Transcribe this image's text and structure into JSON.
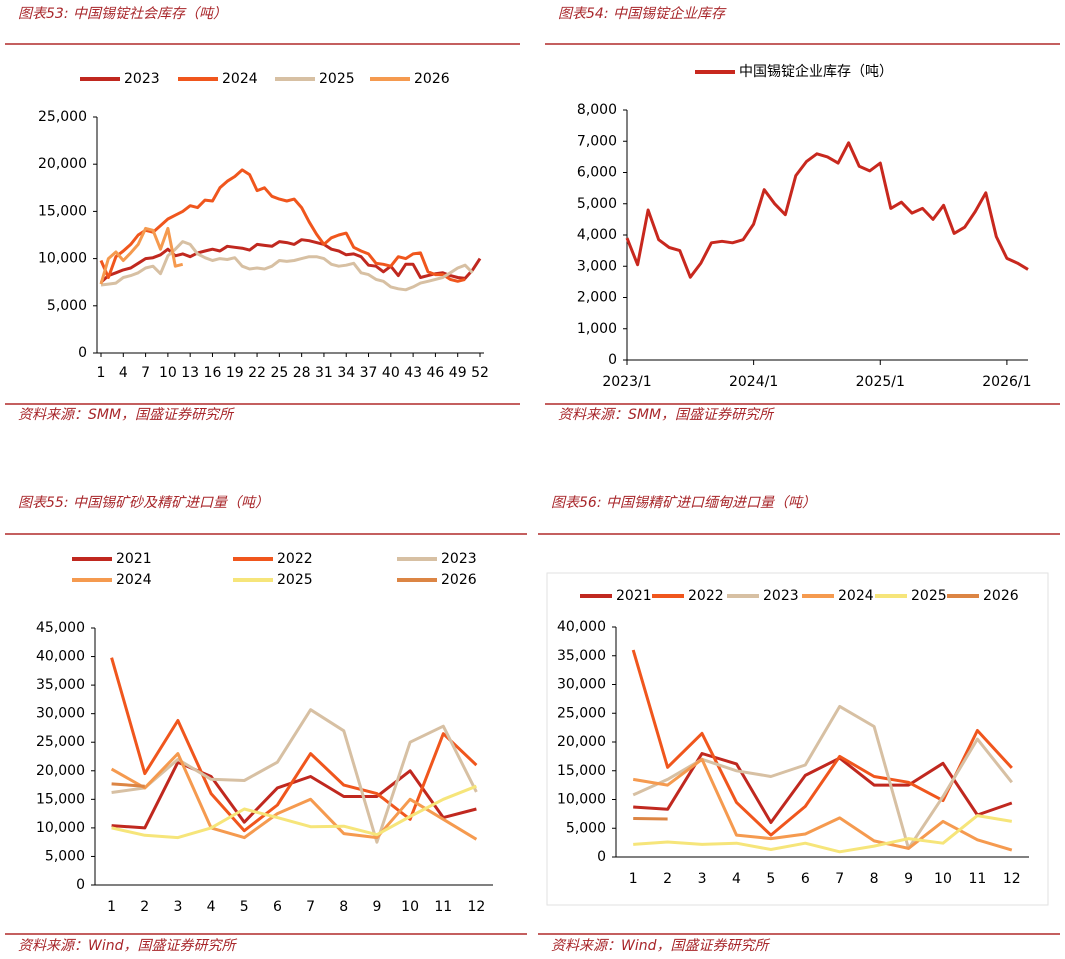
{
  "chart_data": [
    {
      "type": "line",
      "title": "图表53: 中国锡锭社会库存（吨）",
      "source": "资料来源：SMM，国盛证券研究所",
      "x": [
        1,
        2,
        3,
        4,
        5,
        6,
        7,
        8,
        9,
        10,
        11,
        12,
        13,
        14,
        15,
        16,
        17,
        18,
        19,
        20,
        21,
        22,
        23,
        24,
        25,
        26,
        27,
        28,
        29,
        30,
        31,
        32,
        33,
        34,
        35,
        36,
        37,
        38,
        39,
        40,
        41,
        42,
        43,
        44,
        45,
        46,
        47,
        48,
        49,
        50,
        51,
        52
      ],
      "xlim": [
        1,
        52
      ],
      "xticks": [
        1,
        4,
        7,
        10,
        13,
        16,
        19,
        22,
        25,
        28,
        31,
        34,
        37,
        40,
        43,
        46,
        49,
        52
      ],
      "ylim": [
        0,
        25000
      ],
      "yticks": [
        0,
        {
          "value": 5000,
          "label": "5,000"
        },
        {
          "value": 10000,
          "label": "10,000"
        },
        {
          "value": 15000,
          "label": "15,000"
        },
        {
          "value": 20000,
          "label": "20,000"
        },
        {
          "value": 25000,
          "label": "25,000"
        }
      ],
      "series": [
        {
          "name": "2023",
          "color": "#c0281f",
          "values": [
            7500,
            8200,
            8500,
            8800,
            9000,
            9500,
            10000,
            10100,
            10400,
            11000,
            10300,
            10500,
            10200,
            10600,
            10800,
            11000,
            10800,
            11300,
            11200,
            11100,
            10900,
            11500,
            11400,
            11300,
            11800,
            11700,
            11500,
            12000,
            11900,
            11700,
            11500,
            11000,
            10800,
            10400,
            10500,
            10200,
            9300,
            9200,
            8600,
            9200,
            8200,
            9400,
            9400,
            8000,
            8200,
            8400,
            8500,
            8200,
            8000,
            7900,
            8800,
            10000
          ]
        },
        {
          "name": "2024",
          "color": "#f0561d",
          "values": [
            9800,
            8000,
            10200,
            10800,
            11500,
            12500,
            13000,
            12800,
            13500,
            14200,
            14600,
            15000,
            15600,
            15400,
            16200,
            16100,
            17500,
            18200,
            18700,
            19400,
            18900,
            17200,
            17500,
            16600,
            16300,
            16100,
            16300,
            15400,
            13900,
            12600,
            11500,
            12200,
            12500,
            12700,
            11200,
            10800,
            10500,
            9500,
            9400,
            9200,
            10200,
            10000,
            10500,
            10600,
            8600,
            8300,
            8300,
            7800,
            7600,
            7800,
            null,
            null
          ]
        },
        {
          "name": "2025",
          "color": "#d7c0a3",
          "values": [
            7200,
            7300,
            7400,
            8000,
            8200,
            8500,
            9000,
            9200,
            8400,
            10300,
            11000,
            11800,
            11500,
            10500,
            10100,
            9800,
            10000,
            9900,
            10100,
            9200,
            8900,
            9000,
            8900,
            9200,
            9800,
            9700,
            9800,
            10000,
            10200,
            10200,
            10000,
            9400,
            9200,
            9300,
            9500,
            8500,
            8300,
            7800,
            7600,
            7000,
            6800,
            6700,
            7000,
            7400,
            7600,
            7800,
            8000,
            8500,
            9000,
            9300,
            8500,
            null
          ]
        },
        {
          "name": "2026",
          "color": "#f59a4f",
          "values": [
            7300,
            10000,
            10700,
            9800,
            10600,
            11500,
            13200,
            13000,
            11000,
            13200,
            9200,
            9400,
            null,
            null,
            null,
            null,
            null,
            null,
            null,
            null,
            null,
            null,
            null,
            null,
            null,
            null,
            null,
            null,
            null,
            null,
            null,
            null,
            null,
            null,
            null,
            null,
            null,
            null,
            null,
            null,
            null,
            null,
            null,
            null,
            null,
            null,
            null,
            null,
            null,
            null,
            null,
            null
          ]
        }
      ]
    },
    {
      "type": "line",
      "title": "图表54: 中国锡锭企业库存",
      "source": "资料来源：SMM，国盛证券研究所",
      "x": [
        "2023/1",
        "2023/2",
        "2023/3",
        "2023/4",
        "2023/5",
        "2023/6",
        "2023/7",
        "2023/8",
        "2023/9",
        "2023/10",
        "2023/11",
        "2023/12",
        "2024/1",
        "2024/2",
        "2024/3",
        "2024/4",
        "2024/5",
        "2024/6",
        "2024/7",
        "2024/8",
        "2024/9",
        "2024/10",
        "2024/11",
        "2024/12",
        "2025/1",
        "2025/2",
        "2025/3",
        "2025/4",
        "2025/5",
        "2025/6",
        "2025/7",
        "2025/8",
        "2025/9",
        "2025/10",
        "2025/11",
        "2025/12",
        "2026/1",
        "2026/2",
        "2026/3"
      ],
      "xticks": [
        "2023/1",
        "2024/1",
        "2025/1",
        "2026/1"
      ],
      "ylim": [
        0,
        8000
      ],
      "yticks": [
        0,
        {
          "value": 1000,
          "label": "1,000"
        },
        {
          "value": 2000,
          "label": "2,000"
        },
        {
          "value": 3000,
          "label": "3,000"
        },
        {
          "value": 4000,
          "label": "4,000"
        },
        {
          "value": 5000,
          "label": "5,000"
        },
        {
          "value": 6000,
          "label": "6,000"
        },
        {
          "value": 7000,
          "label": "7,000"
        },
        {
          "value": 8000,
          "label": "8,000"
        }
      ],
      "series": [
        {
          "name": "中国锡锭企业库存（吨）",
          "color": "#c8281e",
          "values": [
            3900,
            3050,
            4800,
            3850,
            3600,
            3500,
            2650,
            3100,
            3750,
            3800,
            3750,
            3850,
            4350,
            5450,
            5000,
            4650,
            5900,
            6350,
            6600,
            6500,
            6300,
            6950,
            6200,
            6050,
            6300,
            4850,
            5050,
            4700,
            4850,
            4500,
            4950,
            4050,
            4250,
            4750,
            5350,
            3950,
            3250,
            3100,
            2900
          ]
        }
      ]
    },
    {
      "type": "line",
      "title": "图表55: 中国锡矿砂及精矿进口量（吨）",
      "source": "资料来源：Wind，国盛证券研究所",
      "categories": [
        "1",
        "2",
        "3",
        "4",
        "5",
        "6",
        "7",
        "8",
        "9",
        "10",
        "11",
        "12"
      ],
      "ylim": [
        0,
        45000
      ],
      "yticks": [
        0,
        {
          "value": 5000,
          "label": "5,000"
        },
        {
          "value": 10000,
          "label": "10,000"
        },
        {
          "value": 15000,
          "label": "15,000"
        },
        {
          "value": 20000,
          "label": "20,000"
        },
        {
          "value": 25000,
          "label": "25,000"
        },
        {
          "value": 30000,
          "label": "30,000"
        },
        {
          "value": 35000,
          "label": "35,000"
        },
        {
          "value": 40000,
          "label": "40,000"
        },
        {
          "value": 45000,
          "label": "45,000"
        }
      ],
      "series": [
        {
          "name": "2021",
          "color": "#c0281f",
          "values": [
            10400,
            10000,
            21500,
            19000,
            11000,
            17000,
            19000,
            15500,
            15500,
            20000,
            11800,
            13300
          ]
        },
        {
          "name": "2022",
          "color": "#f0561d",
          "values": [
            39800,
            19500,
            28800,
            16000,
            9500,
            14000,
            23000,
            17500,
            16000,
            11500,
            26500,
            21000
          ]
        },
        {
          "name": "2023",
          "color": "#d7c0a3",
          "values": [
            16200,
            17000,
            22000,
            18500,
            18300,
            21500,
            30700,
            27000,
            7500,
            25000,
            27800,
            16300
          ]
        },
        {
          "name": "2024",
          "color": "#f59a4f",
          "values": [
            20300,
            17000,
            23000,
            10000,
            8300,
            12500,
            15000,
            9000,
            8300,
            15000,
            11500,
            8000
          ]
        },
        {
          "name": "2025",
          "color": "#f6e57a",
          "values": [
            10000,
            8700,
            8300,
            10000,
            13300,
            11800,
            10200,
            10300,
            8800,
            12000,
            15000,
            17300
          ]
        },
        {
          "name": "2026",
          "color": "#dc8544",
          "values": [
            17700,
            17300,
            null,
            null,
            null,
            null,
            null,
            null,
            null,
            null,
            null,
            null
          ]
        }
      ]
    },
    {
      "type": "line",
      "title": "图表56: 中国锡精矿进口缅甸进口量（吨）",
      "source": "资料来源：Wind，国盛证券研究所",
      "categories": [
        "1",
        "2",
        "3",
        "4",
        "5",
        "6",
        "7",
        "8",
        "9",
        "10",
        "11",
        "12"
      ],
      "ylim": [
        0,
        40000
      ],
      "yticks": [
        0,
        {
          "value": 5000,
          "label": "5,000"
        },
        {
          "value": 10000,
          "label": "10,000"
        },
        {
          "value": 15000,
          "label": "15,000"
        },
        {
          "value": 20000,
          "label": "20,000"
        },
        {
          "value": 25000,
          "label": "25,000"
        },
        {
          "value": 30000,
          "label": "30,000"
        },
        {
          "value": 35000,
          "label": "35,000"
        },
        {
          "value": 40000,
          "label": "40,000"
        }
      ],
      "series": [
        {
          "name": "2021",
          "color": "#c0281f",
          "values": [
            8700,
            8300,
            18000,
            16200,
            6000,
            14200,
            17200,
            12500,
            12500,
            16300,
            7300,
            9400
          ]
        },
        {
          "name": "2022",
          "color": "#f0561d",
          "values": [
            36000,
            15600,
            21500,
            9500,
            3800,
            8800,
            17500,
            14000,
            13000,
            9800,
            22000,
            15500
          ]
        },
        {
          "name": "2023",
          "color": "#d7c0a3",
          "values": [
            10800,
            13500,
            17000,
            15000,
            14000,
            16000,
            26200,
            22700,
            1500,
            10500,
            20500,
            13000
          ]
        },
        {
          "name": "2024",
          "color": "#f59a4f",
          "values": [
            13500,
            12500,
            17000,
            3800,
            3200,
            4000,
            6800,
            2800,
            1500,
            6200,
            3000,
            1200
          ]
        },
        {
          "name": "2025",
          "color": "#f6e57a",
          "values": [
            2200,
            2600,
            2200,
            2400,
            1300,
            2400,
            900,
            1900,
            3200,
            2400,
            7200,
            6200
          ]
        },
        {
          "name": "2026",
          "color": "#dc8544",
          "values": [
            6700,
            6600,
            null,
            null,
            null,
            null,
            null,
            null,
            null,
            null,
            null,
            null
          ]
        }
      ]
    }
  ]
}
